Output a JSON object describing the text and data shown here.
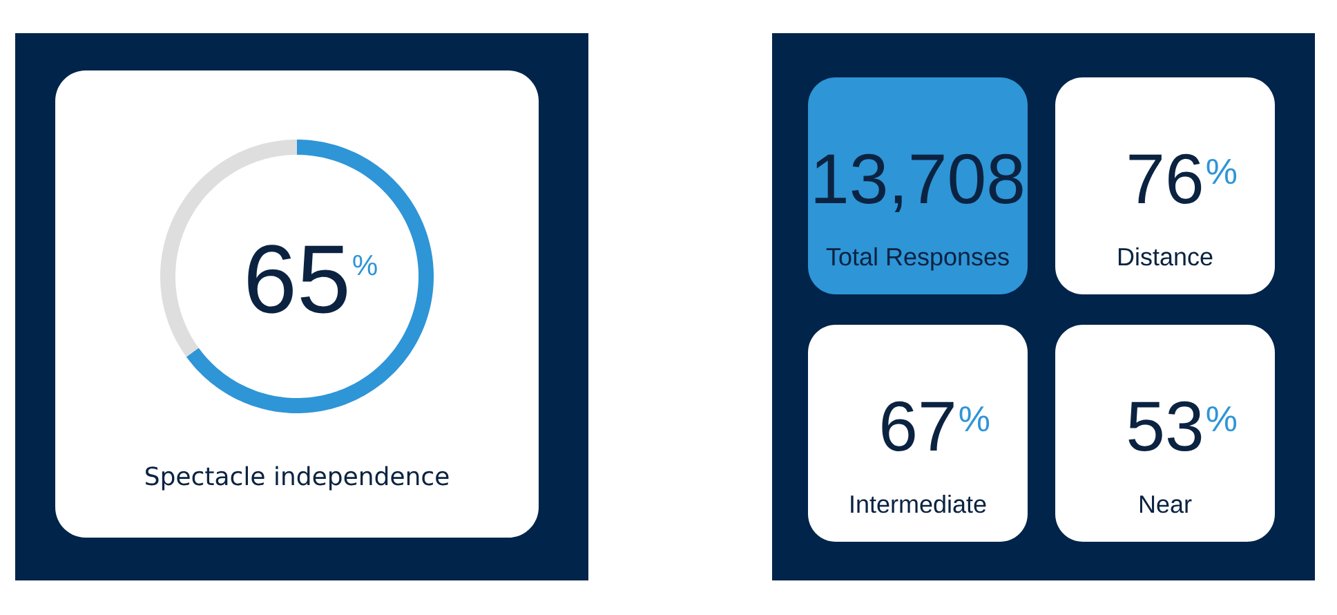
{
  "chart_data": [
    {
      "type": "donut",
      "title": "Spectacle independence",
      "categories": [
        null,
        null
      ],
      "values": [
        65,
        35
      ],
      "colors": [
        "#2e95d7",
        "#dedede"
      ],
      "value_labels": [
        "65$^{%}$",
        null
      ]
    },
    {
      "type": "other",
      "categories": [
        "Total Responses",
        "Distance",
        "Intermediate",
        "Near"
      ],
      "value_labels": [
        "13,708",
        "76$^{%}$",
        "67$^{%}$",
        "53$^{%}$"
      ],
      "colors": [
        "#2e95d7",
        "#ffffff",
        "#ffffff",
        "#ffffff"
      ]
    }
  ]
}
